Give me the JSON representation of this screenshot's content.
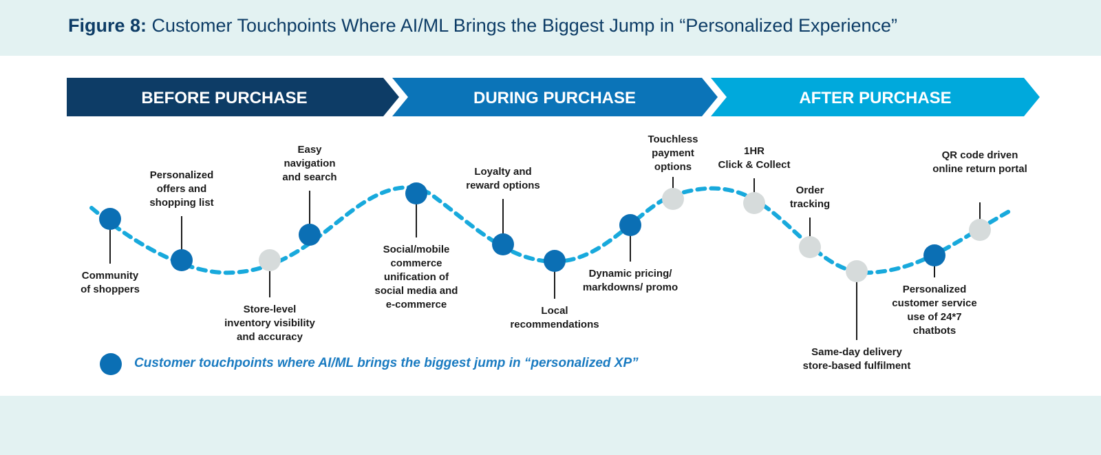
{
  "title": {
    "prefix": "Figure 8:",
    "text": " Customer Touchpoints Where AI/ML Brings the Biggest Jump in “Personalized Experience”"
  },
  "stages": [
    {
      "label": "BEFORE PURCHASE",
      "color": "#0d3c66"
    },
    {
      "label": "DURING PURCHASE",
      "color": "#0b74b8"
    },
    {
      "label": "AFTER PURCHASE",
      "color": "#00a9dc"
    }
  ],
  "touchpoints": [
    {
      "lines": [
        "Community",
        "of shoppers"
      ],
      "highlight": true
    },
    {
      "lines": [
        "Personalized",
        "offers and",
        "shopping list"
      ],
      "highlight": true
    },
    {
      "lines": [
        "Store-level",
        "inventory visibility",
        "and accuracy"
      ],
      "highlight": false
    },
    {
      "lines": [
        "Easy",
        "navigation",
        "and search"
      ],
      "highlight": true
    },
    {
      "lines": [
        "Social/mobile",
        "commerce",
        "unification of",
        "social media and",
        "e-commerce"
      ],
      "highlight": true
    },
    {
      "lines": [
        "Loyalty and",
        "reward options"
      ],
      "highlight": true
    },
    {
      "lines": [
        "Local",
        "recommendations"
      ],
      "highlight": true
    },
    {
      "lines": [
        "Dynamic pricing/",
        "markdowns/ promo"
      ],
      "highlight": true
    },
    {
      "lines": [
        "Touchless",
        "payment",
        "options"
      ],
      "highlight": false
    },
    {
      "lines": [
        "1HR",
        "Click & Collect"
      ],
      "highlight": false
    },
    {
      "lines": [
        "Order",
        "tracking"
      ],
      "highlight": false
    },
    {
      "lines": [
        "Same-day delivery",
        "store-based fulfilment"
      ],
      "highlight": false
    },
    {
      "lines": [
        "Personalized",
        "customer service",
        "use of 24*7",
        "chatbots"
      ],
      "highlight": true
    },
    {
      "lines": [
        "QR code driven",
        "online return portal"
      ],
      "highlight": false
    }
  ],
  "legend": {
    "text": "Customer touchpoints where AI/ML brings the biggest jump in “personalized XP”"
  },
  "colors": {
    "highlight": "#0b6fb4",
    "neutral": "#d6dbdb",
    "curve": "#18a9dc"
  }
}
